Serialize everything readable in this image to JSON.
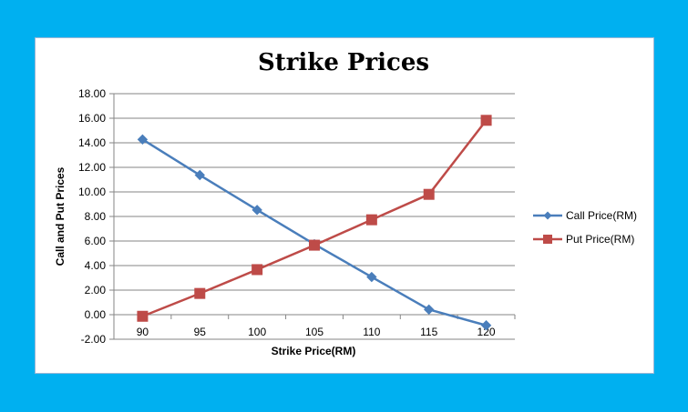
{
  "chart_data": {
    "type": "line",
    "title": "Strike Prices",
    "xlabel": "Strike Price(RM)",
    "ylabel": "Call and Put Prices",
    "categories": [
      "90",
      "95",
      "100",
      "105",
      "110",
      "115",
      "120"
    ],
    "y_ticks": [
      "-2.00",
      "0.00",
      "2.00",
      "4.00",
      "6.00",
      "8.00",
      "10.00",
      "12.00",
      "14.00",
      "16.00",
      "18.00"
    ],
    "ylim": [
      -2,
      18
    ],
    "grid": true,
    "legend_position": "right",
    "series": [
      {
        "name": "Call Price(RM)",
        "color": "#4a7ebb",
        "marker": "diamond",
        "values": [
          14.27,
          11.37,
          8.53,
          5.74,
          3.07,
          0.42,
          -0.87
        ]
      },
      {
        "name": "Put Price(RM)",
        "color": "#be4b48",
        "marker": "square",
        "values": [
          -0.13,
          1.73,
          3.67,
          5.66,
          7.73,
          9.8,
          15.83
        ]
      }
    ]
  }
}
